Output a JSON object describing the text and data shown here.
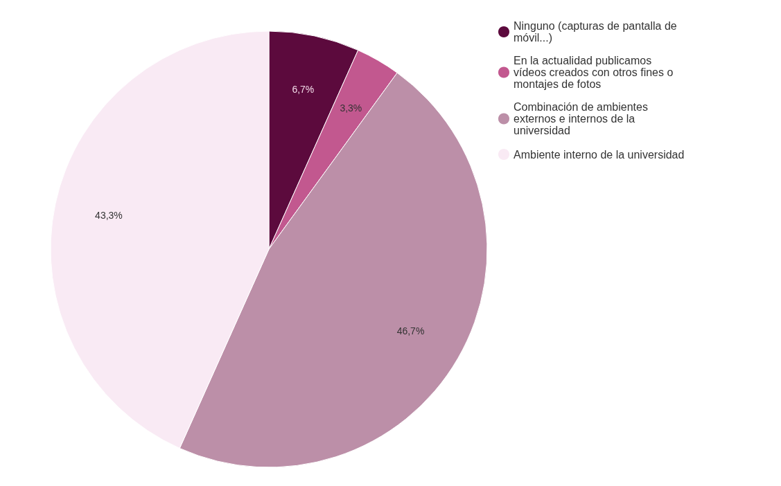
{
  "chart_data": {
    "type": "pie",
    "categories": [
      "Ninguno (capturas de pantalla de móvil...)",
      "En la actualidad publicamos vídeos creados con otros fines o montajes de fotos",
      "Combinación de ambientes externos e internos de la universidad",
      "Ambiente interno de la universidad"
    ],
    "values": [
      6.7,
      3.3,
      46.7,
      43.3
    ],
    "colors": [
      "#5c0a3d",
      "#c2588f",
      "#bc8fa8",
      "#f9eaf4"
    ],
    "value_labels": [
      "6,7%",
      "3,3%",
      "46,7%",
      "43,3%"
    ],
    "legend": "top right"
  }
}
